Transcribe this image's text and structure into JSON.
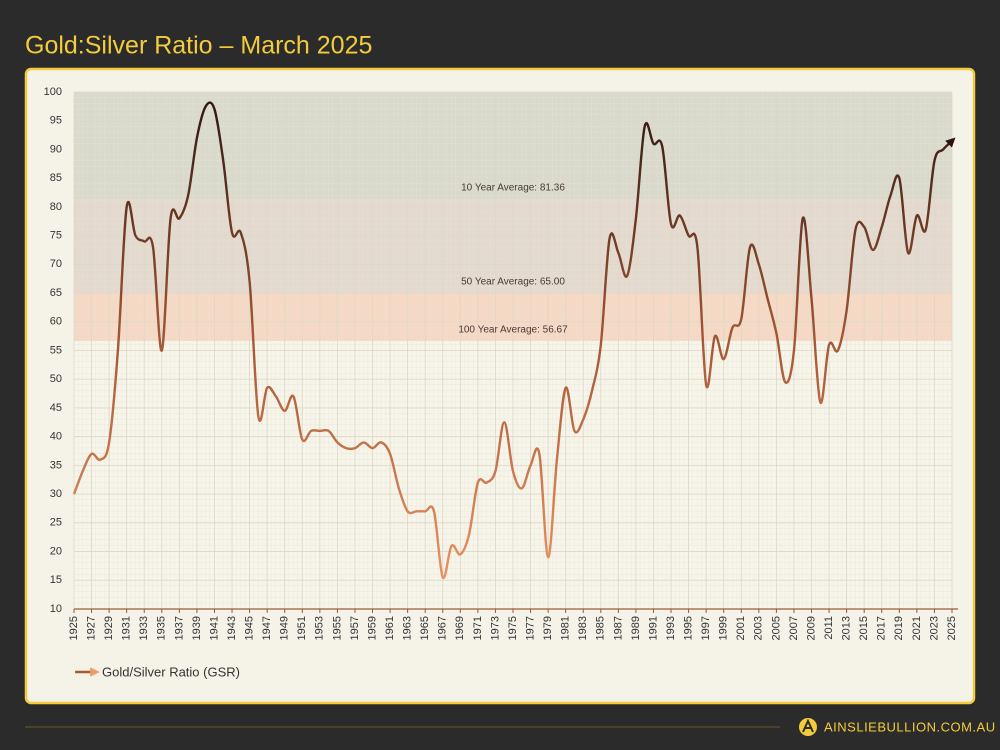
{
  "chart_data": {
    "type": "line",
    "title": "Gold:Silver Ratio – March 2025",
    "x": [
      1925,
      1926,
      1927,
      1928,
      1929,
      1930,
      1931,
      1932,
      1933,
      1934,
      1935,
      1936,
      1937,
      1938,
      1939,
      1940,
      1941,
      1942,
      1943,
      1944,
      1945,
      1946,
      1947,
      1948,
      1949,
      1950,
      1951,
      1952,
      1953,
      1954,
      1955,
      1956,
      1957,
      1958,
      1959,
      1960,
      1961,
      1962,
      1963,
      1964,
      1965,
      1966,
      1967,
      1968,
      1969,
      1970,
      1971,
      1972,
      1973,
      1974,
      1975,
      1976,
      1977,
      1978,
      1979,
      1980,
      1981,
      1982,
      1983,
      1984,
      1985,
      1986,
      1987,
      1988,
      1989,
      1990,
      1991,
      1992,
      1993,
      1994,
      1995,
      1996,
      1997,
      1998,
      1999,
      2000,
      2001,
      2002,
      2003,
      2004,
      2005,
      2006,
      2007,
      2008,
      2009,
      2010,
      2011,
      2012,
      2013,
      2014,
      2015,
      2016,
      2017,
      2018,
      2019,
      2020,
      2021,
      2022,
      2023,
      2024,
      2025
    ],
    "series": [
      {
        "name": "Gold/Silver Ratio (GSR)",
        "gradient": [
          "#2a1511",
          "#a85a38",
          "#f09a68"
        ],
        "values": [
          30,
          34,
          37,
          36,
          39,
          55,
          80,
          75,
          74,
          73,
          55,
          78,
          78,
          82,
          92,
          97.5,
          97,
          88,
          75.5,
          75.5,
          67,
          43.5,
          48.5,
          47,
          44.5,
          47,
          39.5,
          41,
          41,
          41,
          39,
          38,
          38,
          39,
          38,
          39,
          37,
          31,
          27,
          27,
          27,
          27,
          15.5,
          21,
          19.5,
          23,
          32,
          32,
          34,
          42.5,
          34,
          31,
          35,
          37,
          19,
          36,
          48.5,
          41,
          43,
          48,
          56,
          74.5,
          72,
          68,
          78,
          94,
          91,
          90.5,
          77,
          78.5,
          75,
          73,
          49,
          57.5,
          53.5,
          59,
          60.5,
          73,
          70,
          64,
          58,
          49.5,
          55,
          78,
          64,
          46,
          56,
          55,
          62,
          76,
          76.5,
          72.5,
          76.5,
          82,
          85,
          72,
          78.5,
          76,
          88,
          90,
          91.5
        ]
      }
    ],
    "reference_lines": [
      {
        "label": "100 Year Average: 56.67",
        "value": 56.67,
        "color": "#f6cdb6"
      },
      {
        "label": "50 Year Average: 65.00",
        "value": 65.0,
        "color": "#ddcfc4"
      },
      {
        "label": "10 Year Average: 81.36",
        "value": 81.36,
        "color": "#cfd0c2"
      }
    ],
    "xlim": [
      1925,
      2025
    ],
    "xticks": [
      1925,
      1927,
      1929,
      1931,
      1933,
      1935,
      1937,
      1939,
      1941,
      1943,
      1945,
      1947,
      1949,
      1951,
      1953,
      1955,
      1957,
      1959,
      1961,
      1963,
      1965,
      1967,
      1969,
      1971,
      1973,
      1975,
      1977,
      1979,
      1981,
      1983,
      1985,
      1987,
      1989,
      1991,
      1993,
      1995,
      1997,
      1999,
      2001,
      2003,
      2005,
      2007,
      2009,
      2011,
      2013,
      2015,
      2017,
      2019,
      2021,
      2023,
      2025
    ],
    "ylim": [
      10,
      100
    ],
    "yticks": [
      10,
      15,
      20,
      25,
      30,
      35,
      40,
      45,
      50,
      55,
      60,
      65,
      70,
      75,
      80,
      85,
      90,
      95,
      100
    ],
    "grid": true
  },
  "footer": {
    "brand": "AINSLIEBULLION.COM.AU"
  }
}
